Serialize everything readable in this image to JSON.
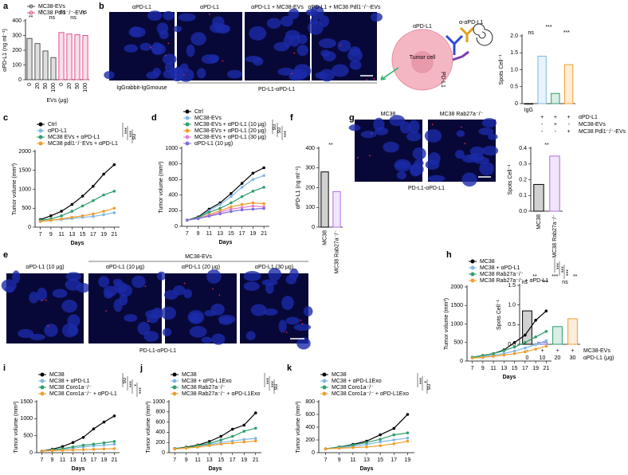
{
  "figure": {
    "panel_letters": [
      "a",
      "b",
      "c",
      "d",
      "f",
      "g",
      "e",
      "h",
      "i",
      "j",
      "k"
    ],
    "b_images": {
      "labels": [
        "αPD-L1",
        "αPD-L1",
        "αPD-L1 + MC38-EVs",
        "αPD-L1 + MC38 Pdl1⁻/⁻-EVs"
      ],
      "igg": "IgGrabbit-IgGmouse",
      "caption": "PD-L1-αPD-L1"
    },
    "b_diagram": {
      "labels": [
        "αPD-L1",
        "Tumor cell",
        "PD-L1",
        "α-αPD-L1"
      ]
    },
    "g_images": {
      "labels": [
        "MC38",
        "MC38 Rab27a⁻/⁻"
      ],
      "caption": "PD-L1-αPD-L1"
    },
    "e_images": {
      "labels": [
        "αPD-L1 (10 μg)",
        "αPD-L1 (10 μg)",
        "αPD-L1 (20 μg)",
        "αPD-L1 (30 μg)"
      ],
      "group": "MC38-EVs",
      "caption": "PD-L1-αPD-L1"
    }
  },
  "chart_data": [
    {
      "type": "bar",
      "ylabel": "αPD-L1 (ng ml⁻¹)",
      "xlabel": "EVs (μg)",
      "categories": [
        "0",
        "20",
        "50",
        "100",
        "0",
        "20",
        "50",
        "100"
      ],
      "series": [
        {
          "name": "MC38-EVs",
          "color": "#555555",
          "values": [
            280,
            245,
            195,
            150,
            null,
            null,
            null,
            null
          ]
        },
        {
          "name": "MC38 Pdl1⁻/⁻-EVs",
          "color": "#e0508c",
          "values": [
            null,
            null,
            null,
            null,
            320,
            310,
            305,
            300
          ]
        }
      ],
      "ylim": [
        0,
        400
      ],
      "yticks": [
        0,
        100,
        200,
        300,
        400
      ],
      "annotations": [
        "**",
        "*",
        "ns",
        "ns",
        "ns",
        "ns"
      ]
    },
    {
      "type": "bar",
      "ylabel": "Spots Cell⁻¹",
      "categories": [
        "IgG",
        null,
        null,
        null
      ],
      "series": [
        {
          "values": [
            0,
            1.4,
            0.3,
            1.15
          ],
          "colors": [
            "#000000",
            "#7fb8e6",
            "#2e9e6b",
            "#f39c2b"
          ]
        }
      ],
      "conditions": [
        {
          "name": "αPD-L1",
          "values": [
            null,
            "+",
            "+",
            "+"
          ]
        },
        {
          "name": "MC38-EVs",
          "values": [
            null,
            "-",
            "+",
            "-"
          ]
        },
        {
          "name": "MC38 Pdl1⁻/⁻-EVs",
          "values": [
            null,
            "-",
            "-",
            "+"
          ]
        }
      ],
      "ylim": [
        0,
        2
      ],
      "yticks": [
        0,
        0.5,
        {
          "value": 1,
          "label": "1.0"
        },
        1.5,
        {
          "value": 2,
          "label": "2.0"
        }
      ],
      "annotations": [
        "ns",
        "***",
        "***"
      ]
    },
    {
      "type": "line",
      "xlabel": "Days",
      "ylabel": "Tumor volume (mm³)",
      "x": [
        7,
        9,
        11,
        13,
        15,
        17,
        19,
        21
      ],
      "xlim": [
        6,
        22
      ],
      "xticks": [
        7,
        9,
        11,
        13,
        15,
        17,
        19,
        21
      ],
      "ylim": [
        0,
        2000
      ],
      "yticks": [
        0,
        500,
        1000,
        1500,
        2000
      ],
      "series": [
        {
          "name": "Ctrl",
          "color": "#000000",
          "values": [
            200,
            300,
            420,
            600,
            820,
            1080,
            1400,
            1650
          ]
        },
        {
          "name": "αPD-L1",
          "color": "#7fb8e6",
          "values": [
            150,
            180,
            200,
            230,
            260,
            280,
            330,
            380
          ]
        },
        {
          "name": "MC38 EVs + αPD-L1",
          "color": "#2e9e6b",
          "values": [
            180,
            220,
            300,
            420,
            560,
            700,
            850,
            950
          ]
        },
        {
          "name": "MC38 pdl1⁻/⁻EVs + αPD-L1",
          "color": "#f39c2b",
          "values": [
            150,
            180,
            220,
            260,
            300,
            350,
            420,
            500
          ]
        }
      ],
      "annotations": [
        "***",
        "***",
        "ns"
      ]
    },
    {
      "type": "line",
      "xlabel": "Days",
      "ylabel": "Tumor volume (mm³)",
      "x": [
        7,
        9,
        11,
        13,
        15,
        17,
        19,
        21
      ],
      "xlim": [
        6,
        22
      ],
      "xticks": [
        7,
        9,
        11,
        13,
        15,
        17,
        19,
        21
      ],
      "ylim": [
        0,
        1000
      ],
      "yticks": [
        0,
        200,
        400,
        600,
        800,
        1000
      ],
      "series": [
        {
          "name": "Ctrl",
          "color": "#000000",
          "values": [
            80,
            120,
            220,
            300,
            420,
            550,
            680,
            750
          ]
        },
        {
          "name": "MC38-EVs",
          "color": "#7fb8e6",
          "values": [
            80,
            110,
            200,
            280,
            380,
            500,
            600,
            650
          ]
        },
        {
          "name": "MC38-EVs + αPD-L1 (10 μg)",
          "color": "#2e9e6b",
          "values": [
            80,
            110,
            180,
            230,
            300,
            380,
            450,
            500
          ]
        },
        {
          "name": "MC38-EVs + αPD-L1 (20 μg)",
          "color": "#f39c2b",
          "values": [
            80,
            100,
            150,
            200,
            250,
            280,
            300,
            290
          ]
        },
        {
          "name": "MC38-EVs + αPD-L1 (30 μg)",
          "color": "#e27fcf",
          "values": [
            80,
            100,
            140,
            180,
            220,
            240,
            260,
            250
          ]
        },
        {
          "name": "αPD-L1 (10 μg)",
          "color": "#7b6fe0",
          "values": [
            80,
            100,
            130,
            160,
            190,
            210,
            220,
            230
          ]
        }
      ],
      "annotations": [
        "ns",
        "ns",
        "***"
      ]
    },
    {
      "type": "bar",
      "ylabel": "αPD-L1 (ng ml⁻¹)",
      "categories": [
        "MC38",
        "MC38 Rab27a⁻/⁻"
      ],
      "series": [
        {
          "values": [
            280,
            180
          ],
          "colors": [
            "#000000",
            "#b06fe0"
          ]
        }
      ],
      "ylim": [
        0,
        400
      ],
      "yticks": [
        0,
        100,
        200,
        300,
        400
      ],
      "annotations": [
        "**"
      ]
    },
    {
      "type": "bar",
      "ylabel": "Spots Cell⁻¹",
      "categories": [
        "MC38",
        "MC38 Rab27a⁻/⁻"
      ],
      "series": [
        {
          "values": [
            0.17,
            0.35
          ],
          "colors": [
            "#000000",
            "#b06fe0"
          ]
        }
      ],
      "ylim": [
        0,
        0.4
      ],
      "yticks": [
        {
          "value": 0,
          "label": "0.0"
        },
        0.1,
        0.2,
        0.3,
        0.4
      ],
      "annotations": [
        "**"
      ]
    },
    {
      "type": "bar",
      "ylabel": "Spots Cell⁻¹",
      "xlabel": "αPD-L1 (μg)",
      "categories": [
        "0",
        "10",
        "20",
        "30"
      ],
      "series": [
        {
          "values": [
            0.85,
            0.05,
            0.45,
            0.65
          ],
          "colors": [
            "#000000",
            "#7b6fe0",
            "#2e9e6b",
            "#f39c2b"
          ]
        }
      ],
      "conditions": [
        {
          "name": "MC38-EVs",
          "values": [
            "-",
            "+",
            "+",
            "+"
          ]
        }
      ],
      "ylim": [
        0,
        1.5
      ],
      "yticks": [
        {
          "value": 0,
          "label": "0.0"
        },
        0.5,
        {
          "value": 1,
          "label": "1.0"
        },
        1.5
      ],
      "annotations": [
        "ns",
        "**",
        "***",
        "***",
        "ns",
        "**"
      ]
    },
    {
      "type": "line",
      "xlabel": "Days",
      "ylabel": "Tumor volume (mm³)",
      "x": [
        7,
        9,
        11,
        13,
        15,
        17,
        19,
        21
      ],
      "xlim": [
        6,
        22
      ],
      "xticks": [
        7,
        9,
        11,
        13,
        15,
        17,
        19,
        21
      ],
      "ylim": [
        0,
        2000
      ],
      "yticks": [
        0,
        500,
        1000,
        1500,
        2000
      ],
      "series": [
        {
          "name": "MC38",
          "color": "#000000",
          "values": [
            100,
            150,
            200,
            300,
            500,
            700,
            1100,
            1350
          ]
        },
        {
          "name": "MC38 + αPD-L1",
          "color": "#7fb8e6",
          "values": [
            100,
            130,
            160,
            200,
            270,
            350,
            450,
            550
          ]
        },
        {
          "name": "MC38 Rab27a⁻/⁻",
          "color": "#2e9e6b",
          "values": [
            100,
            150,
            200,
            280,
            380,
            500,
            650,
            800
          ]
        },
        {
          "name": "MC38 Rab27a⁻/⁻ + αPD-L1",
          "color": "#f39c2b",
          "values": [
            80,
            100,
            130,
            160,
            200,
            250,
            320,
            400
          ]
        }
      ],
      "annotations": [
        "***",
        "***",
        "***"
      ]
    },
    {
      "type": "line",
      "xlabel": "Days",
      "ylabel": "Tumor volume (mm³)",
      "x": [
        7,
        9,
        11,
        13,
        15,
        17,
        19,
        21
      ],
      "xlim": [
        6,
        22
      ],
      "xticks": [
        7,
        9,
        11,
        13,
        15,
        17,
        19,
        21
      ],
      "ylim": [
        0,
        1500
      ],
      "yticks": [
        0,
        500,
        1000,
        1500
      ],
      "series": [
        {
          "name": "MC38",
          "color": "#000000",
          "values": [
            50,
            100,
            180,
            300,
            450,
            700,
            900,
            1080
          ]
        },
        {
          "name": "MC38 + αPD-L1",
          "color": "#7fb8e6",
          "values": [
            50,
            80,
            100,
            130,
            170,
            200,
            220,
            250
          ]
        },
        {
          "name": "MC38 Coro1a⁻/⁻",
          "color": "#2e9e6b",
          "values": [
            50,
            80,
            120,
            170,
            220,
            250,
            290,
            330
          ]
        },
        {
          "name": "MC38 Coro1a⁻/⁻ + αPD-L1",
          "color": "#f39c2b",
          "values": [
            50,
            60,
            70,
            80,
            90,
            100,
            110,
            120
          ]
        }
      ],
      "annotations": [
        "ns",
        "***",
        "*",
        "***"
      ]
    },
    {
      "type": "line",
      "xlabel": "Days",
      "ylabel": "Tumor volume (mm³)",
      "x": [
        7,
        9,
        11,
        13,
        15,
        17,
        19,
        21
      ],
      "xlim": [
        6,
        22
      ],
      "xticks": [
        7,
        9,
        11,
        13,
        15,
        17,
        19,
        21
      ],
      "ylim": [
        0,
        1000
      ],
      "yticks": [
        0,
        200,
        400,
        600,
        800,
        1000
      ],
      "series": [
        {
          "name": "MC38",
          "color": "#000000",
          "values": [
            80,
            110,
            150,
            220,
            320,
            460,
            540,
            780
          ]
        },
        {
          "name": "MC38 + αPD-L1Exo",
          "color": "#7fb8e6",
          "values": [
            80,
            100,
            130,
            160,
            200,
            230,
            260,
            280
          ]
        },
        {
          "name": "MC38 Rab27a⁻/⁻",
          "color": "#2e9e6b",
          "values": [
            80,
            100,
            140,
            180,
            250,
            320,
            420,
            480
          ]
        },
        {
          "name": "MC38 Rab27a⁻/⁻ + αPD-L1Exo",
          "color": "#f39c2b",
          "values": [
            70,
            90,
            110,
            140,
            170,
            190,
            210,
            230
          ]
        }
      ],
      "annotations": [
        "***",
        "***",
        "ns"
      ]
    },
    {
      "type": "line",
      "xlabel": "Days",
      "ylabel": "Tumor volume (mm³)",
      "x": [
        7,
        9,
        11,
        13,
        15,
        17,
        19
      ],
      "xlim": [
        6,
        20
      ],
      "xticks": [
        7,
        9,
        11,
        13,
        15,
        17,
        19
      ],
      "ylim": [
        0,
        800
      ],
      "yticks": [
        0,
        200,
        400,
        600,
        800
      ],
      "series": [
        {
          "name": "MC38",
          "color": "#000000",
          "values": [
            60,
            90,
            130,
            180,
            280,
            380,
            600
          ]
        },
        {
          "name": "MC38 + αPD-L1Exo",
          "color": "#7fb8e6",
          "values": [
            60,
            80,
            100,
            130,
            170,
            200,
            230
          ]
        },
        {
          "name": "MC38 Coro1a⁻/⁻",
          "color": "#2e9e6b",
          "values": [
            60,
            90,
            120,
            160,
            210,
            280,
            310
          ]
        },
        {
          "name": "MC38 Coro1a⁻/⁻ + αPD-L1Exo",
          "color": "#f39c2b",
          "values": [
            60,
            70,
            80,
            90,
            110,
            140,
            180
          ]
        }
      ],
      "annotations": [
        "***",
        "*",
        "ns"
      ]
    }
  ]
}
